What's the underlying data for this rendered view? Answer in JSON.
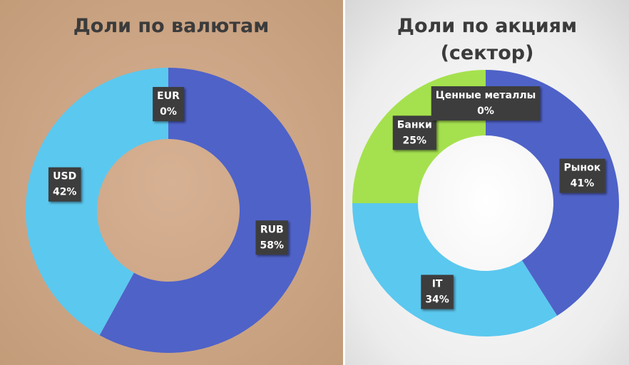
{
  "chart_data": [
    {
      "type": "donut",
      "title": "Доли по валютам",
      "categories": [
        "RUB",
        "USD",
        "EUR"
      ],
      "values": [
        58,
        42,
        0
      ],
      "value_labels": [
        "58%",
        "42%",
        "0%"
      ],
      "colors": [
        "#4f62c8",
        "#5bc8ef",
        "#a5e14e"
      ]
    },
    {
      "type": "donut",
      "title": "Доли по акциям (сектор)",
      "categories": [
        "Рынок",
        "IT",
        "Банки",
        "Ценные металлы"
      ],
      "values": [
        41,
        34,
        25,
        0
      ],
      "value_labels": [
        "41%",
        "34%",
        "25%",
        "0%"
      ],
      "colors": [
        "#4f62c8",
        "#5bc8ef",
        "#a5e14e",
        "#e0a040"
      ]
    }
  ]
}
